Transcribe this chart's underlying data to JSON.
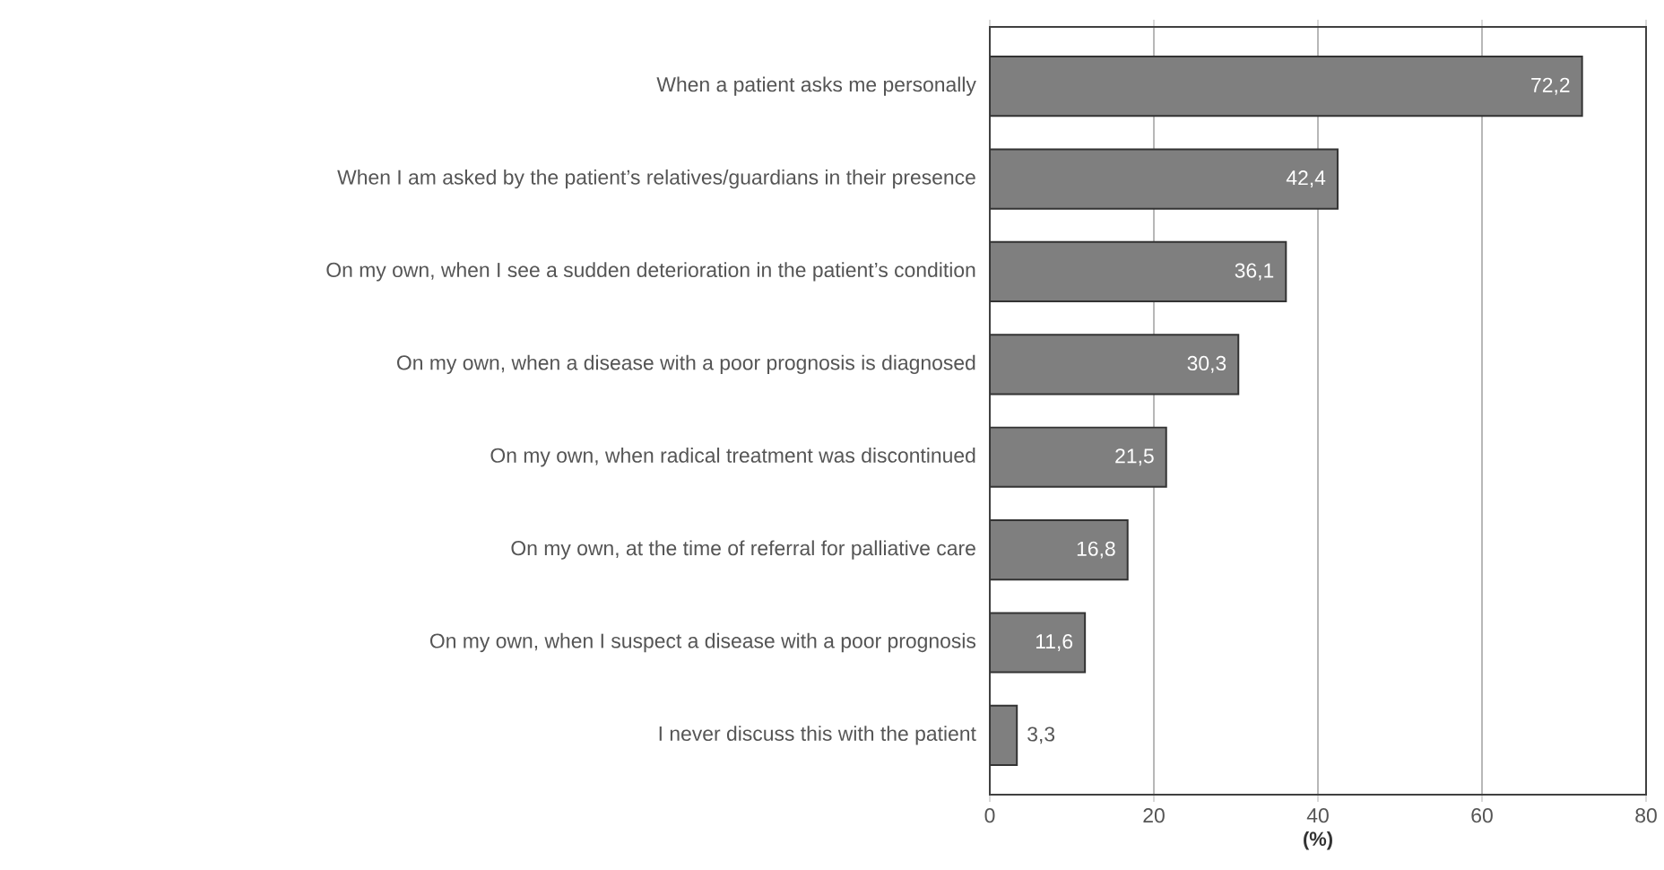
{
  "chart_data": {
    "type": "bar",
    "orientation": "horizontal",
    "categories": [
      "When a patient asks me personally",
      "When I am asked by the patient’s relatives/guardians in their presence",
      "On my own, when I see a sudden deterioration in the patient’s condition",
      "On my own, when a disease with a poor prognosis is diagnosed",
      "On my own, when radical treatment was discontinued",
      "On my own, at the time of referral for palliative care",
      "On my own, when I suspect a disease with a poor prognosis",
      "I never discuss this with the patient"
    ],
    "values": [
      72.2,
      42.4,
      36.1,
      30.3,
      21.5,
      16.8,
      11.6,
      3.3
    ],
    "value_labels": [
      "72,2",
      "42,4",
      "36,1",
      "30,3",
      "21,5",
      "16,8",
      "11,6",
      "3,3"
    ],
    "color": "#7f7f7f",
    "xlim": [
      0,
      80
    ],
    "xticks": [
      0,
      20,
      40,
      60,
      80
    ],
    "xlabel": "(%)",
    "grid": "x"
  }
}
